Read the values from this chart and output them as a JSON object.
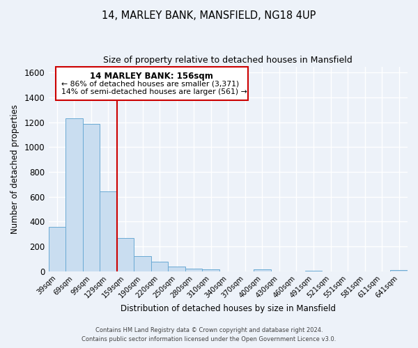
{
  "title": "14, MARLEY BANK, MANSFIELD, NG18 4UP",
  "subtitle": "Size of property relative to detached houses in Mansfield",
  "xlabel": "Distribution of detached houses by size in Mansfield",
  "ylabel": "Number of detached properties",
  "bar_labels": [
    "39sqm",
    "69sqm",
    "99sqm",
    "129sqm",
    "159sqm",
    "190sqm",
    "220sqm",
    "250sqm",
    "280sqm",
    "310sqm",
    "340sqm",
    "370sqm",
    "400sqm",
    "430sqm",
    "460sqm",
    "491sqm",
    "521sqm",
    "551sqm",
    "581sqm",
    "611sqm",
    "641sqm"
  ],
  "bar_values": [
    355,
    1235,
    1190,
    645,
    265,
    120,
    75,
    38,
    22,
    15,
    0,
    0,
    12,
    0,
    0,
    5,
    0,
    0,
    0,
    0,
    8
  ],
  "bar_color": "#c9ddf0",
  "bar_edge_color": "#6aaad4",
  "ylim": [
    0,
    1650
  ],
  "yticks": [
    0,
    200,
    400,
    600,
    800,
    1000,
    1200,
    1400,
    1600
  ],
  "vline_x_idx": 3.5,
  "vline_color": "#cc0000",
  "box_text_line1": "14 MARLEY BANK: 156sqm",
  "box_text_line2": "← 86% of detached houses are smaller (3,371)",
  "box_text_line3": "14% of semi-detached houses are larger (561) →",
  "box_color": "#cc0000",
  "footer_line1": "Contains HM Land Registry data © Crown copyright and database right 2024.",
  "footer_line2": "Contains public sector information licensed under the Open Government Licence v3.0.",
  "bg_color": "#edf2f9"
}
